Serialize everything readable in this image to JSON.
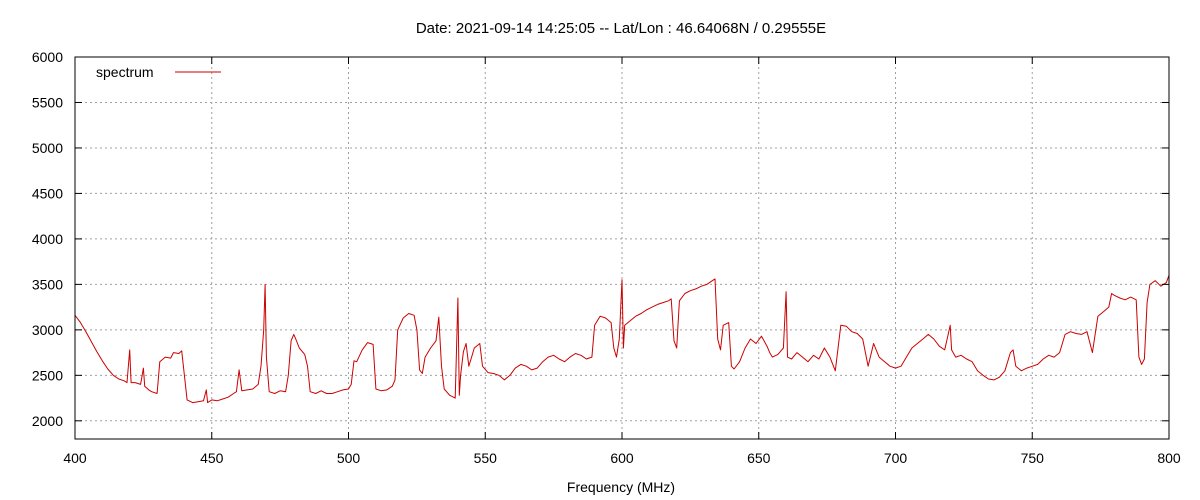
{
  "chart_data": {
    "type": "line",
    "title": "Date: 2021-09-14 14:25:05  --  Lat/Lon : 46.64068N / 0.29555E",
    "xlabel": "Frequency (MHz)",
    "ylabel": "",
    "xlim": [
      400,
      800
    ],
    "ylim": [
      1800,
      6000
    ],
    "xticks": [
      400,
      450,
      500,
      550,
      600,
      650,
      700,
      750,
      800
    ],
    "yticks": [
      2000,
      2500,
      3000,
      3500,
      4000,
      4500,
      5000,
      5500,
      6000
    ],
    "grid": true,
    "legend_position": "top-left",
    "series": [
      {
        "name": "spectrum",
        "color": "#cc0000",
        "points": [
          [
            400,
            3160
          ],
          [
            402,
            3080
          ],
          [
            404,
            2980
          ],
          [
            406,
            2870
          ],
          [
            408,
            2760
          ],
          [
            410,
            2660
          ],
          [
            412,
            2570
          ],
          [
            414,
            2500
          ],
          [
            416,
            2460
          ],
          [
            418,
            2440
          ],
          [
            419,
            2420
          ],
          [
            420,
            2780
          ],
          [
            420.5,
            2420
          ],
          [
            422,
            2420
          ],
          [
            424,
            2400
          ],
          [
            425,
            2580
          ],
          [
            425.5,
            2380
          ],
          [
            427,
            2340
          ],
          [
            428,
            2320
          ],
          [
            430,
            2300
          ],
          [
            431,
            2650
          ],
          [
            433,
            2700
          ],
          [
            435,
            2690
          ],
          [
            436,
            2750
          ],
          [
            438,
            2740
          ],
          [
            439,
            2770
          ],
          [
            440,
            2500
          ],
          [
            441,
            2230
          ],
          [
            443,
            2200
          ],
          [
            445,
            2210
          ],
          [
            447,
            2220
          ],
          [
            448,
            2340
          ],
          [
            448.5,
            2200
          ],
          [
            450,
            2230
          ],
          [
            452,
            2220
          ],
          [
            454,
            2240
          ],
          [
            456,
            2260
          ],
          [
            458,
            2300
          ],
          [
            459,
            2320
          ],
          [
            460,
            2560
          ],
          [
            461,
            2330
          ],
          [
            463,
            2340
          ],
          [
            465,
            2350
          ],
          [
            467,
            2400
          ],
          [
            468,
            2600
          ],
          [
            469,
            3000
          ],
          [
            469.5,
            3500
          ],
          [
            470,
            2700
          ],
          [
            471,
            2320
          ],
          [
            473,
            2300
          ],
          [
            475,
            2330
          ],
          [
            477,
            2320
          ],
          [
            478,
            2500
          ],
          [
            479,
            2880
          ],
          [
            480,
            2950
          ],
          [
            481,
            2880
          ],
          [
            482,
            2800
          ],
          [
            484,
            2730
          ],
          [
            485,
            2600
          ],
          [
            486,
            2320
          ],
          [
            488,
            2300
          ],
          [
            490,
            2330
          ],
          [
            492,
            2300
          ],
          [
            494,
            2300
          ],
          [
            496,
            2320
          ],
          [
            498,
            2340
          ],
          [
            500,
            2350
          ],
          [
            501,
            2400
          ],
          [
            502,
            2660
          ],
          [
            503,
            2650
          ],
          [
            505,
            2780
          ],
          [
            507,
            2860
          ],
          [
            509,
            2840
          ],
          [
            510,
            2350
          ],
          [
            512,
            2330
          ],
          [
            514,
            2340
          ],
          [
            516,
            2380
          ],
          [
            517,
            2450
          ],
          [
            518,
            3000
          ],
          [
            520,
            3130
          ],
          [
            522,
            3180
          ],
          [
            524,
            3160
          ],
          [
            525,
            3000
          ],
          [
            526,
            2560
          ],
          [
            527,
            2520
          ],
          [
            528,
            2700
          ],
          [
            530,
            2800
          ],
          [
            532,
            2880
          ],
          [
            533,
            3140
          ],
          [
            534,
            2600
          ],
          [
            535,
            2350
          ],
          [
            537,
            2280
          ],
          [
            539,
            2250
          ],
          [
            540,
            3350
          ],
          [
            540.5,
            2280
          ],
          [
            541,
            2500
          ],
          [
            542,
            2760
          ],
          [
            543,
            2850
          ],
          [
            544,
            2600
          ],
          [
            545,
            2700
          ],
          [
            546,
            2800
          ],
          [
            548,
            2850
          ],
          [
            549,
            2600
          ],
          [
            551,
            2530
          ],
          [
            553,
            2520
          ],
          [
            555,
            2500
          ],
          [
            557,
            2450
          ],
          [
            559,
            2500
          ],
          [
            561,
            2580
          ],
          [
            563,
            2620
          ],
          [
            565,
            2600
          ],
          [
            567,
            2560
          ],
          [
            569,
            2580
          ],
          [
            571,
            2650
          ],
          [
            573,
            2700
          ],
          [
            575,
            2720
          ],
          [
            577,
            2680
          ],
          [
            579,
            2650
          ],
          [
            581,
            2700
          ],
          [
            583,
            2740
          ],
          [
            585,
            2720
          ],
          [
            587,
            2680
          ],
          [
            589,
            2700
          ],
          [
            590,
            3050
          ],
          [
            592,
            3150
          ],
          [
            594,
            3130
          ],
          [
            596,
            3080
          ],
          [
            597,
            2800
          ],
          [
            598,
            2700
          ],
          [
            599,
            2900
          ],
          [
            600,
            3550
          ],
          [
            600.5,
            2800
          ],
          [
            601,
            3050
          ],
          [
            603,
            3100
          ],
          [
            605,
            3150
          ],
          [
            607,
            3180
          ],
          [
            609,
            3220
          ],
          [
            611,
            3250
          ],
          [
            613,
            3280
          ],
          [
            615,
            3300
          ],
          [
            617,
            3320
          ],
          [
            618,
            3340
          ],
          [
            619,
            2880
          ],
          [
            620,
            2800
          ],
          [
            621,
            3320
          ],
          [
            623,
            3400
          ],
          [
            625,
            3430
          ],
          [
            627,
            3450
          ],
          [
            629,
            3480
          ],
          [
            631,
            3500
          ],
          [
            633,
            3540
          ],
          [
            634,
            3560
          ],
          [
            635,
            2900
          ],
          [
            636,
            2780
          ],
          [
            637,
            3050
          ],
          [
            639,
            3080
          ],
          [
            640,
            2600
          ],
          [
            641,
            2570
          ],
          [
            643,
            2650
          ],
          [
            645,
            2800
          ],
          [
            647,
            2900
          ],
          [
            649,
            2850
          ],
          [
            651,
            2930
          ],
          [
            653,
            2820
          ],
          [
            654,
            2750
          ],
          [
            655,
            2700
          ],
          [
            657,
            2730
          ],
          [
            659,
            2800
          ],
          [
            660,
            3420
          ],
          [
            660.5,
            2700
          ],
          [
            662,
            2680
          ],
          [
            664,
            2750
          ],
          [
            666,
            2700
          ],
          [
            668,
            2650
          ],
          [
            670,
            2720
          ],
          [
            672,
            2680
          ],
          [
            674,
            2800
          ],
          [
            676,
            2700
          ],
          [
            678,
            2550
          ],
          [
            680,
            3050
          ],
          [
            682,
            3040
          ],
          [
            684,
            2980
          ],
          [
            686,
            2960
          ],
          [
            688,
            2900
          ],
          [
            690,
            2600
          ],
          [
            692,
            2850
          ],
          [
            694,
            2700
          ],
          [
            696,
            2650
          ],
          [
            698,
            2600
          ],
          [
            700,
            2580
          ],
          [
            702,
            2600
          ],
          [
            704,
            2700
          ],
          [
            706,
            2800
          ],
          [
            708,
            2850
          ],
          [
            710,
            2900
          ],
          [
            712,
            2950
          ],
          [
            714,
            2900
          ],
          [
            716,
            2820
          ],
          [
            718,
            2780
          ],
          [
            720,
            3050
          ],
          [
            720.5,
            2780
          ],
          [
            722,
            2700
          ],
          [
            724,
            2720
          ],
          [
            726,
            2680
          ],
          [
            728,
            2650
          ],
          [
            730,
            2550
          ],
          [
            732,
            2500
          ],
          [
            734,
            2460
          ],
          [
            736,
            2450
          ],
          [
            738,
            2480
          ],
          [
            740,
            2550
          ],
          [
            742,
            2750
          ],
          [
            743,
            2780
          ],
          [
            744,
            2600
          ],
          [
            746,
            2550
          ],
          [
            748,
            2580
          ],
          [
            750,
            2600
          ],
          [
            752,
            2620
          ],
          [
            754,
            2680
          ],
          [
            756,
            2720
          ],
          [
            758,
            2700
          ],
          [
            760,
            2750
          ],
          [
            762,
            2950
          ],
          [
            764,
            2980
          ],
          [
            766,
            2960
          ],
          [
            768,
            2950
          ],
          [
            770,
            2980
          ],
          [
            772,
            2750
          ],
          [
            774,
            3150
          ],
          [
            776,
            3200
          ],
          [
            778,
            3250
          ],
          [
            779,
            3400
          ],
          [
            780,
            3380
          ],
          [
            782,
            3350
          ],
          [
            784,
            3330
          ],
          [
            786,
            3360
          ],
          [
            788,
            3330
          ],
          [
            789,
            2700
          ],
          [
            790,
            2620
          ],
          [
            791,
            2680
          ],
          [
            792,
            3300
          ],
          [
            793,
            3500
          ],
          [
            795,
            3540
          ],
          [
            797,
            3480
          ],
          [
            799,
            3520
          ],
          [
            800,
            3600
          ]
        ]
      }
    ]
  }
}
